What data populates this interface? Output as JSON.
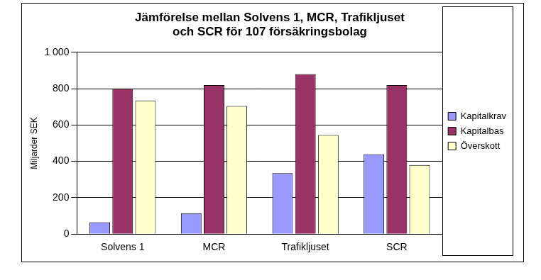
{
  "chart_data": {
    "type": "bar",
    "title": [
      "Jämförelse mellan Solvens 1, MCR, Trafikljuset",
      "och SCR för 107 försäkringsbolag"
    ],
    "y_label": "Miljarder SEK",
    "categories": [
      "Solvens 1",
      "MCR",
      "Trafikljuset",
      "SCR"
    ],
    "series": [
      {
        "name": "Kapitalkrav",
        "color": "#9999ff",
        "values": [
          65,
          115,
          335,
          440
        ]
      },
      {
        "name": "Kapitalbas",
        "color": "#993366",
        "values": [
          800,
          820,
          880,
          820
        ]
      },
      {
        "name": "Överskott",
        "color": "#ffffcc",
        "values": [
          735,
          705,
          545,
          380
        ]
      }
    ],
    "ylim": [
      0,
      1000
    ],
    "yticks": [
      0,
      200,
      400,
      600,
      800,
      {
        "value": 1000,
        "label": "1 000"
      }
    ],
    "grid": true,
    "legend": "right"
  }
}
